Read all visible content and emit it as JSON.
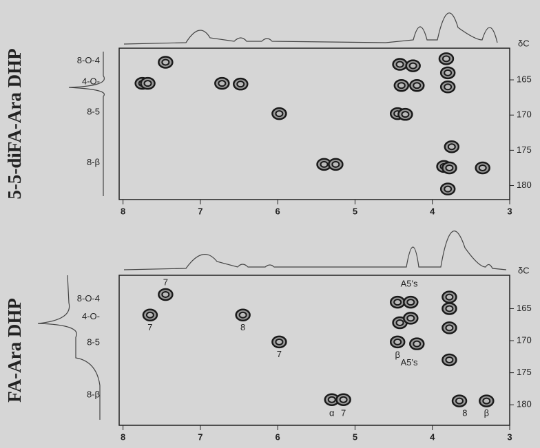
{
  "chart_data": [
    {
      "type": "scatter",
      "title": "5-5-diFA-Ara DHP",
      "y_label": "δC",
      "xlim": [
        8.05,
        3
      ],
      "xticks": [
        8,
        7,
        6,
        5,
        4,
        3
      ],
      "ylim": [
        160.5,
        182
      ],
      "yticks": [
        165,
        170,
        175,
        180
      ],
      "x": [
        7.45,
        7.75,
        7.68,
        6.72,
        6.48,
        5.98,
        5.4,
        5.25,
        4.42,
        4.25,
        4.4,
        4.2,
        4.45,
        4.35,
        3.82,
        3.8,
        3.8,
        3.85,
        3.78,
        3.8,
        3.75,
        3.35
      ],
      "values": [
        162.5,
        165.5,
        165.5,
        165.5,
        165.6,
        169.8,
        177.0,
        177.0,
        162.8,
        163.0,
        165.8,
        165.8,
        169.8,
        169.9,
        162.0,
        164.0,
        166.0,
        177.3,
        177.5,
        180.5,
        174.5,
        177.5
      ],
      "row_labels": [
        {
          "text": "8-O-4",
          "y": 162.3
        },
        {
          "text": "4-O-",
          "y": 165.3
        },
        {
          "text": "8-5",
          "y": 169.6
        },
        {
          "text": "8-β",
          "y": 176.8
        }
      ],
      "annotations": []
    },
    {
      "type": "scatter",
      "title": "FA-Ara DHP",
      "y_label": "δC",
      "xlim": [
        8.05,
        3
      ],
      "xticks": [
        8,
        7,
        6,
        5,
        4,
        3
      ],
      "ylim": [
        159.8,
        183.2
      ],
      "yticks": [
        165,
        170,
        175,
        180
      ],
      "x": [
        7.45,
        7.65,
        6.45,
        5.98,
        5.3,
        5.15,
        4.42,
        4.45,
        4.28,
        4.28,
        4.45,
        4.2,
        3.78,
        3.78,
        3.78,
        3.78,
        3.65,
        3.3
      ],
      "values": [
        162.8,
        166.0,
        166.0,
        170.2,
        179.2,
        179.2,
        167.2,
        164.0,
        164.0,
        166.5,
        170.2,
        170.5,
        163.2,
        165.0,
        168.0,
        173.0,
        179.4,
        179.4
      ],
      "row_labels": [
        {
          "text": "8-O-4",
          "y": 163.5
        },
        {
          "text": "4-O-",
          "y": 166.3
        },
        {
          "text": "8-5",
          "y": 170.3
        },
        {
          "text": "8-β",
          "y": 178.5
        }
      ],
      "annotations": [
        {
          "text": "7",
          "x": 7.45,
          "y": 161.0
        },
        {
          "text": "7",
          "x": 7.65,
          "y": 168.0
        },
        {
          "text": "8",
          "x": 6.45,
          "y": 168.0
        },
        {
          "text": "7",
          "x": 5.98,
          "y": 172.2
        },
        {
          "text": "α",
          "x": 5.3,
          "y": 181.4
        },
        {
          "text": "7",
          "x": 5.15,
          "y": 181.4
        },
        {
          "text": "A5's",
          "x": 4.3,
          "y": 161.2
        },
        {
          "text": "β",
          "x": 4.45,
          "y": 172.3
        },
        {
          "text": "A5's",
          "x": 4.3,
          "y": 173.5
        },
        {
          "text": "8",
          "x": 3.58,
          "y": 181.4
        },
        {
          "text": "β",
          "x": 3.3,
          "y": 181.4
        }
      ]
    }
  ]
}
